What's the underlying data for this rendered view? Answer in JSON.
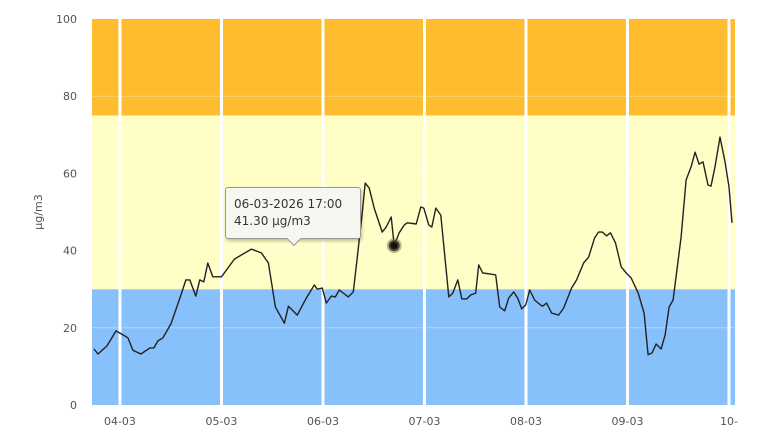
{
  "chart_data": {
    "type": "line",
    "title": "",
    "xlabel": "",
    "ylabel": "µg/m3",
    "ylim": [
      0,
      100
    ],
    "x_unit": "days since 04-03",
    "xlim": [
      -8.4,
      184.8
    ],
    "x_ticks": [
      {
        "value": 0,
        "label": "04-03"
      },
      {
        "value": 30.5,
        "label": "05-03"
      },
      {
        "value": 61,
        "label": "06-03"
      },
      {
        "value": 91.5,
        "label": "07-03"
      },
      {
        "value": 122,
        "label": "08-03"
      },
      {
        "value": 152.5,
        "label": "09-03"
      },
      {
        "value": 183,
        "label": "10-"
      }
    ],
    "y_ticks": [
      0,
      20,
      40,
      60,
      80,
      100
    ],
    "bands": [
      {
        "from": 0,
        "to": 30,
        "color": "#87C0FA"
      },
      {
        "from": 30,
        "to": 75,
        "color": "#FFFEC6"
      },
      {
        "from": 75,
        "to": 100,
        "color": "#FEBD2F"
      }
    ],
    "line_color": "#222222",
    "series": [
      {
        "name": "µg/m3",
        "x": [
          -7.8,
          -6.6,
          -3.9,
          -1.2,
          2.4,
          3.9,
          6.3,
          9.0,
          10.2,
          11.4,
          12.9,
          15.3,
          18.0,
          19.8,
          21.0,
          22.8,
          24.0,
          25.2,
          26.4,
          27.9,
          30.5,
          34.4,
          39.5,
          42.5,
          44.6,
          46.7,
          49.4,
          50.6,
          53.3,
          56.0,
          58.4,
          59.3,
          60.8,
          62.0,
          63.5,
          64.7,
          65.9,
          68.6,
          70.1,
          71.3,
          72.8,
          73.7,
          74.9,
          76.4,
          78.8,
          80.0,
          81.5,
          82.4,
          83.9,
          85.4,
          86.3,
          89.0,
          90.4,
          91.3,
          92.8,
          93.7,
          94.9,
          96.4,
          98.8,
          100.0,
          101.5,
          102.7,
          104.2,
          105.4,
          106.9,
          107.8,
          109.0,
          111.4,
          112.9,
          114.1,
          115.6,
          116.8,
          118.3,
          119.5,
          120.7,
          121.9,
          123.1,
          124.6,
          126.4,
          127.0,
          128.2,
          129.7,
          131.8,
          133.3,
          135.7,
          137.2,
          139.3,
          140.8,
          142.6,
          143.8,
          145.0,
          146.2,
          147.4,
          148.9,
          150.6,
          152.1,
          153.6,
          155.7,
          157.5,
          158.7,
          159.9,
          161.1,
          162.6,
          163.8,
          165.0,
          166.2,
          168.6,
          170.1,
          171.6,
          172.8,
          174.0,
          175.2,
          176.7,
          177.6,
          178.8,
          180.3,
          181.8,
          183.0,
          183.9
        ],
        "y": [
          14.5,
          13.2,
          15.3,
          19.2,
          17.4,
          14.2,
          13.2,
          14.8,
          14.8,
          16.6,
          17.4,
          21,
          27.7,
          32.4,
          32.4,
          28.2,
          32.4,
          31.9,
          36.8,
          33.2,
          33.2,
          37.8,
          40.4,
          39.4,
          36.8,
          25.4,
          21.2,
          25.6,
          23.3,
          27.7,
          31.1,
          30,
          30.3,
          26.4,
          28.2,
          28,
          29.8,
          28,
          29.3,
          38.3,
          49.7,
          57.5,
          56.2,
          51,
          44.8,
          46.1,
          48.7,
          41.3,
          44.6,
          46.6,
          47.2,
          46.9,
          51.3,
          51,
          46.6,
          46.1,
          51,
          49.2,
          28,
          29,
          32.4,
          27.5,
          27.5,
          28.5,
          29,
          36.3,
          34.2,
          33.9,
          33.7,
          25.4,
          24.4,
          27.7,
          29.3,
          27.7,
          24.9,
          25.9,
          29.8,
          27.2,
          25.9,
          25.6,
          26.4,
          23.8,
          23.3,
          25.1,
          30.3,
          32.4,
          36.8,
          38.3,
          43.3,
          44.8,
          44.8,
          43.8,
          44.6,
          42,
          35.8,
          34.2,
          32.9,
          29,
          23.8,
          13,
          13.5,
          15.8,
          14.5,
          18.1,
          25.4,
          27.2,
          43.5,
          58.3,
          61.7,
          65.5,
          62.4,
          63,
          57,
          56.7,
          61.7,
          69.4,
          63,
          56.5,
          47.2
        ]
      }
    ],
    "highlight": {
      "x": 82.4,
      "y": 41.3
    },
    "tooltip": {
      "line1": "06-03-2026 17:00",
      "line2": "41.30 µg/m3"
    },
    "grid": true,
    "legend": "none"
  }
}
